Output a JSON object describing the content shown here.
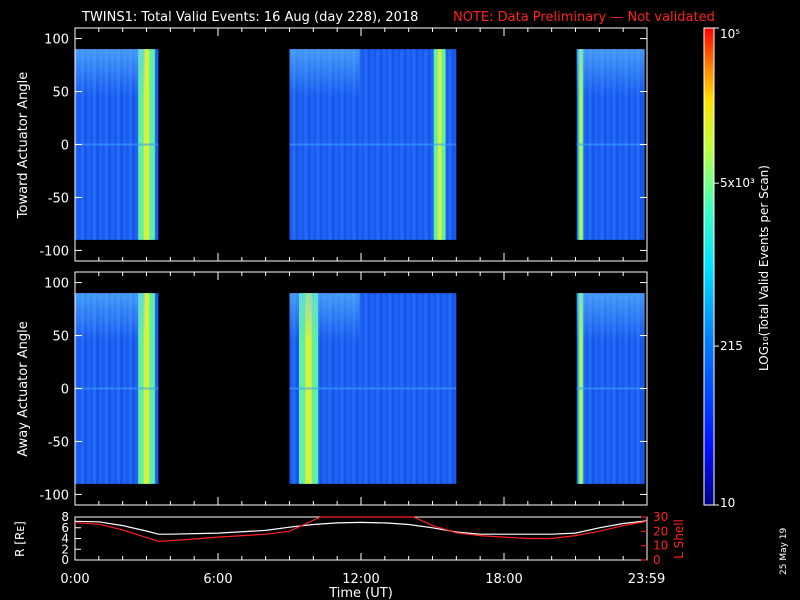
{
  "title": {
    "main": "TWINS1: Total Valid Events: 16 Aug (day 228), 2018",
    "note": "NOTE: Data Preliminary — Not validated"
  },
  "stamp": "25 May 19",
  "colors": {
    "accent_red": "#ff2020",
    "r_line": "#ffffff",
    "lshell_line": "#ff2020"
  },
  "chart_data": [
    {
      "type": "heatmap",
      "ylabel": "Toward Actuator Angle",
      "ylim": [
        -110,
        110
      ],
      "y_ticks": [
        "100",
        "50",
        "0",
        "-50",
        "-100"
      ],
      "y_tick_values": [
        100,
        50,
        0,
        -50,
        -100
      ],
      "data_y_range": [
        -90,
        90
      ],
      "x_unit": "hours UT",
      "xlim": [
        0,
        24
      ],
      "blocks": [
        {
          "start": 0.0,
          "end": 3.5,
          "bright_start": 2.65,
          "bright_end": 3.35
        },
        {
          "start": 9.0,
          "end": 16.0,
          "bright_start": 15.05,
          "bright_end": 15.55
        },
        {
          "start": 21.05,
          "end": 23.9,
          "bright_start": 21.12,
          "bright_end": 21.33
        }
      ]
    },
    {
      "type": "heatmap",
      "ylabel": "Away Actuator Angle",
      "ylim": [
        -110,
        110
      ],
      "y_ticks": [
        "100",
        "50",
        "0",
        "-50",
        "-100"
      ],
      "y_tick_values": [
        100,
        50,
        0,
        -50,
        -100
      ],
      "data_y_range": [
        -90,
        90
      ],
      "x_unit": "hours UT",
      "xlim": [
        0,
        24
      ],
      "blocks": [
        {
          "start": 0.0,
          "end": 3.5,
          "bright_start": 2.65,
          "bright_end": 3.35
        },
        {
          "start": 9.0,
          "end": 16.0,
          "bright_start": 9.4,
          "bright_end": 10.2
        },
        {
          "start": 21.05,
          "end": 23.9,
          "bright_start": 21.12,
          "bright_end": 21.33
        }
      ]
    },
    {
      "type": "line",
      "ylabel_left": "R [Rᴇ]",
      "ylabel_right": "L Shell",
      "ylim_left": [
        0,
        8
      ],
      "ylim_right": [
        0,
        30
      ],
      "y_ticks_left": [
        "8",
        "6",
        "4",
        "2",
        "0"
      ],
      "y_tick_values_left": [
        8,
        6,
        4,
        2,
        0
      ],
      "y_ticks_right": [
        "30",
        "20",
        "10",
        "0"
      ],
      "y_tick_values_right": [
        30,
        20,
        10,
        0
      ],
      "xlabel": "Time (UT)",
      "x_ticks": [
        "0:00",
        "6:00",
        "12:00",
        "18:00",
        "23:59"
      ],
      "x_tick_values": [
        0,
        6,
        12,
        18,
        23.98
      ],
      "xlim": [
        0,
        24
      ],
      "series": [
        {
          "axis": "left",
          "x": [
            0,
            1,
            2,
            3,
            3.5,
            4,
            6,
            8,
            9,
            10,
            11,
            12,
            13,
            14,
            15,
            16,
            17,
            18,
            19,
            20,
            21,
            22,
            23,
            24
          ],
          "y": [
            7.2,
            7.1,
            6.4,
            5.4,
            4.8,
            4.8,
            5.0,
            5.5,
            6.1,
            6.6,
            6.9,
            7.0,
            6.9,
            6.6,
            6.0,
            5.2,
            4.8,
            4.8,
            4.8,
            4.8,
            5.0,
            6.0,
            6.8,
            7.3
          ]
        },
        {
          "axis": "right",
          "x": [
            0,
            1,
            2,
            3.5,
            4.5,
            6,
            8,
            9,
            10.3,
            14.2,
            15,
            16,
            17,
            18,
            19,
            20,
            21,
            22,
            23,
            24
          ],
          "y": [
            26,
            25,
            21,
            13,
            14,
            16,
            18,
            20,
            30,
            30,
            24,
            19,
            17,
            16,
            15,
            15,
            17,
            20,
            24,
            27
          ]
        }
      ]
    }
  ],
  "colorbar": {
    "label": "LOG₁₀(Total Valid Events per Scan)",
    "ticks": [
      "10⁵",
      "5x10³",
      "215",
      "10"
    ],
    "tick_values": [
      100000,
      5000,
      215,
      10
    ],
    "range": [
      10,
      100000
    ]
  }
}
